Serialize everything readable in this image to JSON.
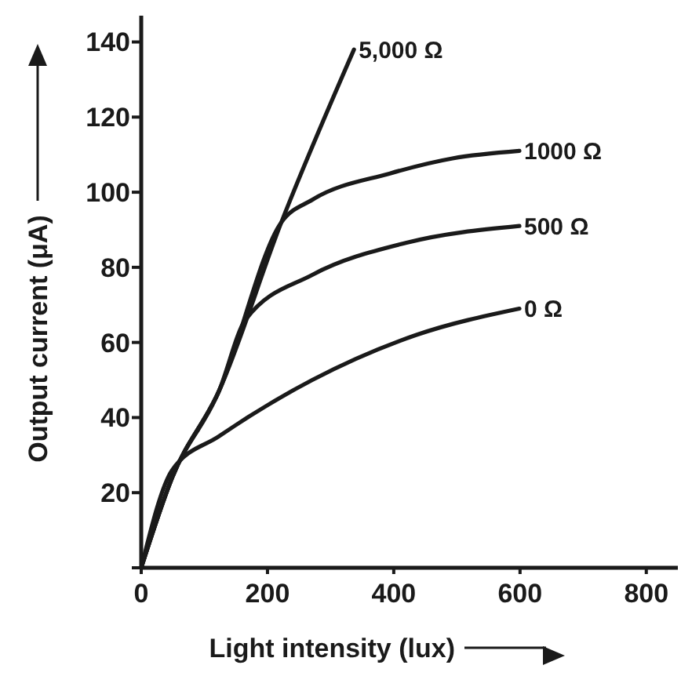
{
  "chart_data": {
    "type": "line",
    "xlabel": "Light intensity (lux)",
    "ylabel": "Output current (μA)",
    "xlim": [
      0,
      850
    ],
    "ylim": [
      0,
      147
    ],
    "xticks": [
      0,
      200,
      400,
      600,
      800
    ],
    "yticks": [
      {
        "value": 0,
        "label": null
      },
      20,
      40,
      60,
      80,
      100,
      120,
      140
    ],
    "grid": false,
    "marker": "none",
    "line_style": "solid",
    "series": [
      {
        "name": "5,000 Ω",
        "color": "#1a1a1a",
        "x": [
          0,
          49,
          123,
          222,
          337
        ],
        "values": [
          0,
          24,
          47,
          92,
          138
        ]
      },
      {
        "name": "1000 Ω",
        "color": "#1a1a1a",
        "x": [
          0,
          49,
          123,
          222,
          271,
          394,
          493,
          599
        ],
        "values": [
          0,
          24,
          47,
          92,
          98,
          105,
          109,
          111
        ]
      },
      {
        "name": "500 Ω",
        "color": "#1a1a1a",
        "x": [
          0,
          49,
          123,
          165,
          271,
          419,
          599
        ],
        "values": [
          0,
          24,
          47,
          66,
          78,
          86.5,
          91
        ]
      },
      {
        "name": "0 Ω",
        "color": "#1a1a1a",
        "x": [
          0,
          49,
          123,
          271,
          436,
          599
        ],
        "values": [
          0,
          26,
          35,
          50,
          62,
          69
        ]
      }
    ]
  }
}
